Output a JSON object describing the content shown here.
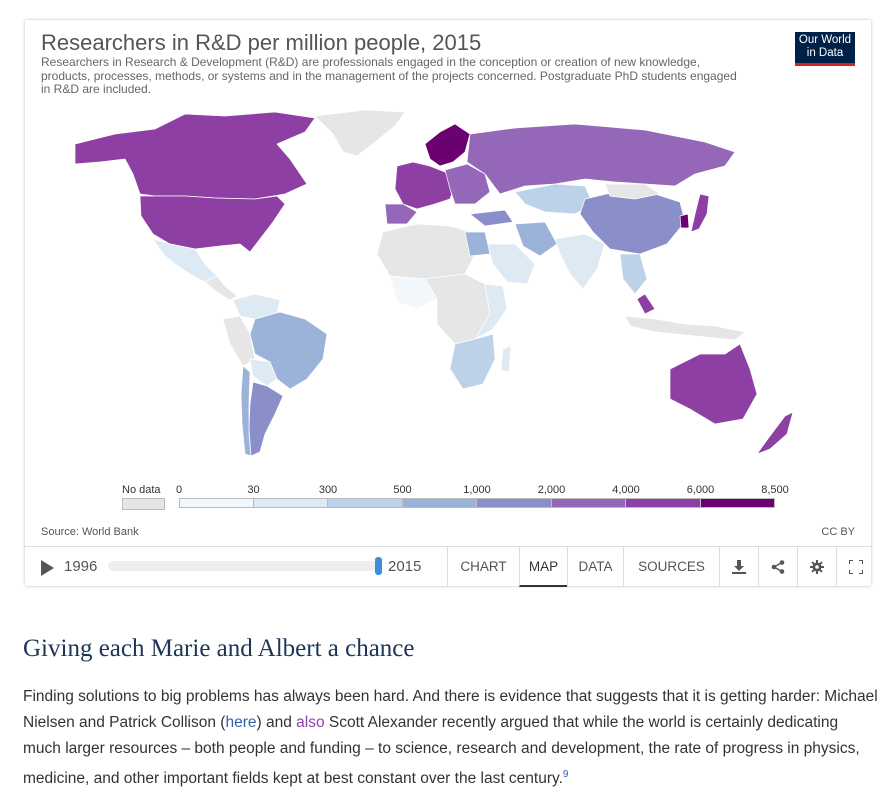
{
  "chart": {
    "title": "Researchers in R&D per million people, 2015",
    "subtitle": "Researchers in Research & Development (R&D) are professionals engaged in the conception or creation of new knowledge, products, processes, methods, or systems and in the management of the projects concerned. Postgraduate PhD students engaged in R&D are included.",
    "logo_line1": "Our World",
    "logo_line2": "in Data",
    "source": "Source: World Bank",
    "license": "CC BY",
    "legend": {
      "no_data_label": "No data",
      "ticks": [
        "0",
        "30",
        "300",
        "500",
        "1,000",
        "2,000",
        "4,000",
        "6,000",
        "8,500"
      ],
      "colors": [
        "#f1f7fb",
        "#dde9f3",
        "#bcd2e8",
        "#9bb3d8",
        "#8a8fc9",
        "#9467b8",
        "#8e3fa3",
        "#6b0070"
      ],
      "no_data_color": "#e6e6e6"
    }
  },
  "chart_data": {
    "type": "choropleth-map",
    "title": "Researchers in R&D per million people, 2015",
    "color_bins": [
      [
        0,
        30
      ],
      [
        30,
        300
      ],
      [
        300,
        500
      ],
      [
        500,
        1000
      ],
      [
        1000,
        2000
      ],
      [
        2000,
        4000
      ],
      [
        4000,
        6000
      ],
      [
        6000,
        8500
      ]
    ],
    "year": 2015
  },
  "timeline": {
    "start_year": "1996",
    "end_year": "2015",
    "position": 1.0
  },
  "tabs": [
    {
      "label": "CHART",
      "active": false
    },
    {
      "label": "MAP",
      "active": true
    },
    {
      "label": "DATA",
      "active": false
    },
    {
      "label": "SOURCES",
      "active": false
    }
  ],
  "icons": [
    "download-icon",
    "share-icon",
    "settings-icon",
    "fullscreen-icon"
  ],
  "article": {
    "heading": "Giving each Marie and Albert a chance",
    "p_text1": "Finding solutions to big problems has always been hard. And there is evidence that suggests that it is getting harder: Michael Nielsen and Patrick Collison (",
    "link_here": "here",
    "p_text2": ") and ",
    "link_also": "also",
    "p_text3": " Scott Alexander recently argued that while the world is certainly dedicating much larger resources – both people and funding – to science, research and development, the rate of progress in physics, medicine, and other important fields kept at best constant over the last century.",
    "footnote": "9"
  }
}
